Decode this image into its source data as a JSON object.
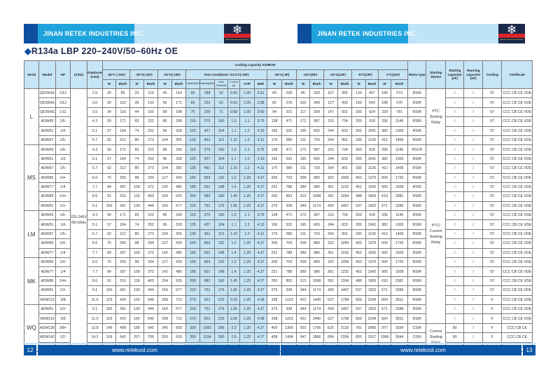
{
  "header": {
    "company": "JINAN RETEK INDUSTRIES INC.",
    "logo_text": "莱特制冷"
  },
  "title": {
    "bullet": "◆",
    "text": "R134a  LBP  220–240V/50–60Hz  OE"
  },
  "table": {
    "headers": {
      "serial": "Serial",
      "model": "Model",
      "hp": "HP",
      "vhz": "(V/Hz)",
      "displacement": "Displacement (cm3)",
      "cooling_capacity": "Cooling Capacity ASHRAE",
      "t35": "-35°C (-31F)",
      "t30": "-30°C(-22F)",
      "t25": "-25°C(-13F)",
      "test_conditions": "Test Conditions:-23.3°C(-10F)",
      "t20": "-20°C(-4F)",
      "t15": "-15°C(5F)",
      "t10": "-10°C(14F)",
      "t5": "-5°C(23F)",
      "t0": "0°C(32F)",
      "w": "W",
      "btu": "Btu/h",
      "cap_w": "Capacity(W)",
      "cap_btu": "Capacity(Btu/h)",
      "input_power": "Input Power(W)",
      "current": "Current (A)",
      "cop": "COP",
      "eer": "EER",
      "motor_type": "Motor type",
      "starting_device": "Starting Device",
      "starting_capacitor": "Starting capacitor (uF)",
      "running_capacitor": "Running capacitor (uF)",
      "cooling": "Cooling",
      "certificate": "Certificate"
    },
    "vhz_value": "220-240V /50-60Hz",
    "starting_devices": [
      {
        "label": "PTC Starting Relay",
        "rows": 6
      },
      {
        "label": "PTC/ Current Starting Relay",
        "rows": 19
      },
      {
        "label": "Current Starting Relay",
        "rows": 3
      }
    ],
    "groups": [
      {
        "serial": "L",
        "rows": [
          [
            "QD25HG",
            "1/12",
            "2.5",
            "25",
            "85",
            "33",
            "113",
            "42",
            "143",
            "55",
            "188",
            "52",
            "0.55",
            "1.05",
            "3.61",
            "69",
            "235",
            "86",
            "293",
            "107",
            "365",
            "134",
            "457",
            "168",
            "573",
            "RSIR",
            "/",
            "/",
            "ST",
            "CCC CB CE VDE"
          ],
          [
            "QD30HG",
            "1/12",
            "3.0",
            "30",
            "102",
            "39",
            "133",
            "50",
            "171",
            "65",
            "222",
            "62",
            "0.63",
            "1.05",
            "3.58",
            "81",
            "276",
            "102",
            "348",
            "127",
            "433",
            "159",
            "543",
            "198",
            "676",
            "RSIR",
            "/",
            "/",
            "ST",
            "CCC CB CE VDE"
          ],
          [
            "QD35HG",
            "1/11",
            "3.5",
            "34",
            "116",
            "44",
            "150",
            "58",
            "198",
            "75",
            "256",
            "71",
            "0.68",
            "1.05",
            "3.60",
            "94",
            "321",
            "117",
            "399",
            "147",
            "502",
            "183",
            "624",
            "229",
            "781",
            "RSIR",
            "/",
            "/",
            "ST",
            "CCC CB CE VDE"
          ],
          [
            "ADW43",
            "1/6-",
            "4.3",
            "50",
            "171",
            "65",
            "222",
            "85",
            "290",
            "110",
            "375",
            "100",
            "1.0",
            "1.1",
            "3.75",
            "138",
            "471",
            "172",
            "587",
            "215",
            "734",
            "269",
            "918",
            "336",
            "1146",
            "RSIR",
            "/",
            "/",
            "ST",
            "CCC CB CE VDE"
          ],
          [
            "ADW51",
            "1/6",
            "5.1",
            "57",
            "194",
            "74",
            "252",
            "96",
            "328",
            "125",
            "427",
            "104",
            "1.1",
            "1.2",
            "4.10",
            "156",
            "532",
            "195",
            "665",
            "244",
            "833",
            "305",
            "1041",
            "382",
            "1303",
            "RSIR",
            "/",
            "/",
            "ST",
            "CCC CB CE VDE"
          ],
          [
            "ADW57",
            "1/5-",
            "5.7",
            "62",
            "212",
            "80",
            "273",
            "104",
            "355",
            "135",
            "461",
            "112",
            "1.15",
            "1.2",
            "4.11",
            "170",
            "580",
            "211",
            "720",
            "264",
            "901",
            "330",
            "1126",
            "412",
            "1406",
            "RSIR",
            "/",
            "/",
            "ST",
            "CCC CB CE VDE"
          ]
        ]
      },
      {
        "serial": "MS",
        "rows": [
          [
            "ADW43",
            "1/6-",
            "4.3",
            "50",
            "171",
            "65",
            "222",
            "85",
            "290",
            "110",
            "375",
            "100",
            "1.0",
            "1.1",
            "3.75",
            "138",
            "471",
            "172",
            "587",
            "215",
            "734",
            "269",
            "918",
            "336",
            "1146",
            "RSCR",
            "/",
            "/",
            "ST",
            "CCC CB CE VDE"
          ],
          [
            "ADW51",
            "1/6",
            "5.1",
            "57",
            "194",
            "74",
            "252",
            "96",
            "328",
            "125",
            "427",
            "104",
            "1.1",
            "1.2",
            "4.10",
            "156",
            "532",
            "195",
            "665",
            "244",
            "833",
            "305",
            "1041",
            "382",
            "1303",
            "RSIR",
            "/",
            "/",
            "ST",
            "CCC CB CE VDE"
          ],
          [
            "ADW57",
            "1/5-",
            "5.7",
            "62",
            "212",
            "80",
            "273",
            "104",
            "355",
            "135",
            "461",
            "112",
            "1.15",
            "1.2",
            "4.11",
            "170",
            "580",
            "211",
            "720",
            "264",
            "901",
            "330",
            "1126",
            "412",
            "1406",
            "RSIR",
            "/",
            "/",
            "ST",
            "CCC CB CE VDE"
          ],
          [
            "ADW66",
            "1/4-",
            "6.6",
            "75",
            "256",
            "98",
            "334",
            "127",
            "433",
            "165",
            "563",
            "132",
            "1.2",
            "1.25",
            "4.27",
            "206",
            "703",
            "258",
            "880",
            "322",
            "1099",
            "403",
            "1375",
            "504",
            "1720",
            "RSIR",
            "/",
            "/",
            "ST",
            "CCC CB CE VDE"
          ],
          [
            "ADW77",
            "1/4",
            "7.7",
            "84",
            "287",
            "109",
            "372",
            "142",
            "485",
            "185",
            "631",
            "148",
            "1.4",
            "1.25",
            "4.27",
            "231",
            "788",
            "289",
            "986",
            "361",
            "1232",
            "452",
            "1542",
            "565",
            "1928",
            "RSIR",
            "/",
            "/",
            "ST",
            "CCC CB CE VDE"
          ],
          [
            "ADW86",
            "1/4+",
            "8.6",
            "91",
            "310",
            "118",
            "403",
            "154",
            "525",
            "200",
            "682",
            "160",
            "1.45",
            "1.25",
            "4.27",
            "250",
            "853",
            "313",
            "1068",
            "391",
            "1334",
            "488",
            "1665",
            "610",
            "2081",
            "RSIR",
            "/",
            "/",
            "ST",
            "CCC CB CE VDE"
          ],
          [
            "ADW91",
            "1/3-",
            "9.1",
            "100",
            "341",
            "130",
            "444",
            "169",
            "577",
            "220",
            "751",
            "176",
            "1.65",
            "1.25",
            "4.27",
            "275",
            "938",
            "344",
            "1174",
            "430",
            "1467",
            "537",
            "1832",
            "671",
            "2289",
            "RSIR",
            "/",
            "/",
            "ST",
            "CCC CB CE VDE"
          ]
        ]
      },
      {
        "serial": "LM",
        "rows": [
          [
            "ADW43",
            "1/6-",
            "4.3",
            "50",
            "171",
            "65",
            "222",
            "85",
            "290",
            "110",
            "375",
            "100",
            "1.0",
            "1.1",
            "3.75",
            "138",
            "471",
            "172",
            "587",
            "215",
            "734",
            "269",
            "918",
            "336",
            "1146",
            "RSIR",
            "/",
            "/",
            "ST",
            "CCC CB CE VDE"
          ],
          [
            "ADW51",
            "1/6",
            "5.1",
            "57",
            "194",
            "74",
            "252",
            "96",
            "328",
            "125",
            "427",
            "104",
            "1.1",
            "1.2",
            "4.10",
            "156",
            "532",
            "195",
            "665",
            "244",
            "833",
            "305",
            "1041",
            "382",
            "1303",
            "RSIR",
            "/",
            "/",
            "ST",
            "CCC CB CE VDE"
          ],
          [
            "ADW57",
            "1/5-",
            "5.7",
            "62",
            "212",
            "80",
            "273",
            "104",
            "355",
            "135",
            "461",
            "112",
            "1.15",
            "1.2",
            "4.11",
            "170",
            "580",
            "211",
            "720",
            "264",
            "901",
            "330",
            "1126",
            "412",
            "1406",
            "RSIR",
            "/",
            "/",
            "ST",
            "CCC CB CE VDE"
          ],
          [
            "ADW66",
            "1/4-",
            "6.6",
            "75",
            "256",
            "98",
            "334",
            "127",
            "433",
            "165",
            "563",
            "132",
            "1.2",
            "1.25",
            "4.27",
            "206",
            "703",
            "258",
            "880",
            "322",
            "1099",
            "403",
            "1375",
            "504",
            "1720",
            "RSIR",
            "/",
            "/",
            "ST",
            "CCC CB CE VDE"
          ],
          [
            "ADW77",
            "1/4",
            "7.7",
            "84",
            "287",
            "109",
            "372",
            "142",
            "485",
            "185",
            "631",
            "148",
            "1.4",
            "1.25",
            "4.27",
            "231",
            "788",
            "289",
            "986",
            "361",
            "1232",
            "452",
            "1542",
            "565",
            "1928",
            "RSIR",
            "/",
            "/",
            "ST",
            "CCC CB CE VDE"
          ]
        ]
      },
      {
        "serial": "MK",
        "rows": [
          [
            "ADW66",
            "1/4-",
            "6.6",
            "75",
            "256",
            "98",
            "334",
            "127",
            "433",
            "165",
            "563",
            "132",
            "1.2",
            "1.25",
            "4.27",
            "206",
            "703",
            "258",
            "880",
            "322",
            "1099",
            "403",
            "1375",
            "504",
            "1720",
            "RSIR",
            "/",
            "/",
            "ST",
            "CCC CB CE VDE"
          ],
          [
            "ADW77",
            "1/4",
            "7.7",
            "84",
            "287",
            "109",
            "372",
            "142",
            "485",
            "185",
            "631",
            "148",
            "1.4",
            "1.25",
            "4.27",
            "231",
            "788",
            "289",
            "986",
            "361",
            "1232",
            "452",
            "1542",
            "565",
            "1928",
            "RSIR",
            "/",
            "/",
            "ST",
            "CCC CB CE VDE"
          ],
          [
            "ADW86",
            "1/4+",
            "8.6",
            "91",
            "310",
            "118",
            "403",
            "154",
            "525",
            "200",
            "682",
            "160",
            "1.45",
            "1.25",
            "4.27",
            "250",
            "853",
            "313",
            "1068",
            "391",
            "1334",
            "488",
            "1665",
            "610",
            "2081",
            "RSIR",
            "/",
            "/",
            "ST",
            "CCC CB CE VDE"
          ],
          [
            "ADW91",
            "1/3-",
            "9.1",
            "100",
            "341",
            "130",
            "444",
            "169",
            "577",
            "220",
            "751",
            "176",
            "1.65",
            "1.25",
            "4.27",
            "275",
            "938",
            "344",
            "1174",
            "430",
            "1467",
            "537",
            "1832",
            "671",
            "2289",
            "RSIR",
            "/",
            "/",
            "ST",
            "CCC CB CE VDE"
          ],
          [
            "ADW110",
            "3/8",
            "11.0",
            "123",
            "420",
            "160",
            "546",
            "208",
            "710",
            "270",
            "921",
            "215",
            "2.05",
            "1.25",
            "4.28",
            "338",
            "1153",
            "422",
            "1440",
            "527",
            "1798",
            "659",
            "2249",
            "824",
            "2811",
            "RSIR",
            "/",
            "/",
            "F",
            "CCC CB CE VDE"
          ]
        ]
      },
      {
        "serial": "WQ",
        "rows": [
          [
            "ADW91",
            "1/3-",
            "9.1",
            "100",
            "341",
            "130",
            "444",
            "169",
            "577",
            "220",
            "751",
            "176",
            "1.65",
            "1.25",
            "4.27",
            "275",
            "938",
            "344",
            "1174",
            "430",
            "1467",
            "537",
            "1832",
            "671",
            "2289",
            "RSIR",
            "/",
            "/",
            "F",
            "CCC CB CE VDE"
          ],
          [
            "ADW110",
            "3/8",
            "11.0",
            "123",
            "420",
            "160",
            "546",
            "208",
            "710",
            "270",
            "921",
            "215",
            "2.05",
            "1.25",
            "4.28",
            "338",
            "1153",
            "422",
            "1440",
            "527",
            "1798",
            "659",
            "2249",
            "824",
            "2811",
            "RSIR",
            "/",
            "/",
            "F",
            "CCC CB CE VDE"
          ],
          [
            "ADW128",
            "3/8+",
            "12.8",
            "146",
            "498",
            "189",
            "645",
            "246",
            "839",
            "320",
            "1092",
            "256",
            "2.3",
            "1.25",
            "4.27",
            "400",
            "1365",
            "503",
            "1706",
            "625",
            "2133",
            "781",
            "2665",
            "977",
            "3334",
            "CSIR",
            "80",
            "/",
            "F",
            "CCC CB CE"
          ],
          [
            "ADW142",
            "1/2-",
            "14.2",
            "159",
            "543",
            "207",
            "706",
            "269",
            "918",
            "350",
            "1194",
            "280",
            "2.6",
            "1.25",
            "4.27",
            "438",
            "1494",
            "547",
            "1866",
            "684",
            "2334",
            "855",
            "2917",
            "1068",
            "3644",
            "CSIR",
            "80",
            "/",
            "F",
            "CCC CB CE"
          ],
          [
            "ADW153",
            "1/2",
            "15.3",
            "173",
            "590",
            "225",
            "768",
            "292",
            "996",
            "380",
            "1297",
            "304",
            "2.8",
            "1.25",
            "4.27",
            "475",
            "1621",
            "594",
            "2027",
            "742",
            "2532",
            "828",
            "2825",
            "1160",
            "3958",
            "CSIR",
            "80",
            "/",
            "F",
            "CCC CB CE"
          ]
        ]
      }
    ]
  },
  "footer": {
    "left_page": "12",
    "right_page": "13",
    "website": "www.retekool.com"
  },
  "colors": {
    "brand_dark_blue": "#0d4f9e",
    "brand_blue": "#1ea3dd",
    "header_light_blue": "#c6e5f6",
    "footer_blue": "#0a55a5",
    "logo_red": "#d8262c"
  }
}
